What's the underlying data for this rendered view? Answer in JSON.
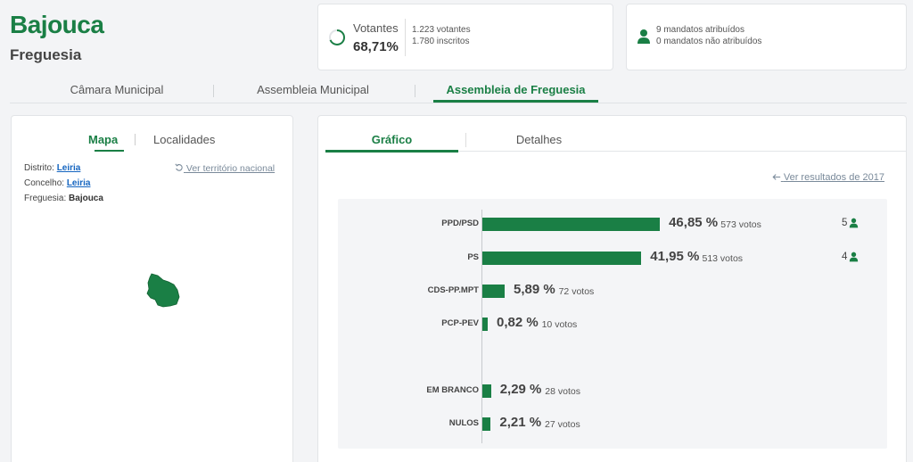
{
  "header": {
    "title": "Bajouca",
    "subtitle": "Freguesia"
  },
  "voters_card": {
    "label": "Votantes",
    "percent": "68,71%",
    "percent_value": 68.71,
    "voters": "1.223 votantes",
    "registered": "1.780 inscritos"
  },
  "mandates_card": {
    "icon": "person-icon",
    "assigned": "9 mandatos atribuídos",
    "unassigned": "0 mandatos não atribuídos"
  },
  "top_tabs": [
    {
      "label": "Câmara Municipal",
      "active": false
    },
    {
      "label": "Assembleia Municipal",
      "active": false
    },
    {
      "label": "Assembleia de Freguesia",
      "active": true
    }
  ],
  "left_panel": {
    "tabs": [
      {
        "label": "Mapa",
        "active": true
      },
      {
        "label": "Localidades",
        "active": false
      }
    ],
    "reset_link": "Ver território nacional",
    "district_label": "Distrito:",
    "district_value": "Leiria",
    "council_label": "Concelho:",
    "council_value": "Leiria",
    "parish_label": "Freguesia:",
    "parish_value": "Bajouca"
  },
  "right_panel": {
    "tabs": [
      {
        "label": "Gráfico",
        "active": true
      },
      {
        "label": "Detalhes",
        "active": false
      }
    ],
    "prev_results_link": "Ver resultados de 2017"
  },
  "colors": {
    "accent": "#1a7f45",
    "link": "#1565c0"
  },
  "chart_data": {
    "type": "bar",
    "orientation": "horizontal",
    "categories": [
      "PPD/PSD",
      "PS",
      "CDS-PP.MPT",
      "PCP-PEV",
      "EM BRANCO",
      "NULOS"
    ],
    "values": [
      46.85,
      41.95,
      5.89,
      0.82,
      2.29,
      2.21
    ],
    "pct_labels": [
      "46,85 %",
      "41,95 %",
      "5,89 %",
      "0,82 %",
      "2,29 %",
      "2,21 %"
    ],
    "votes_labels": [
      "573 votos",
      "513 votos",
      "72 votos",
      "10 votos",
      "28 votos",
      "27 votos"
    ],
    "votes": [
      573,
      513,
      72,
      10,
      28,
      27
    ],
    "seats": [
      "5",
      "4",
      "",
      "",
      "",
      ""
    ],
    "title": "",
    "xlabel": "",
    "ylabel": "",
    "grid": false
  }
}
